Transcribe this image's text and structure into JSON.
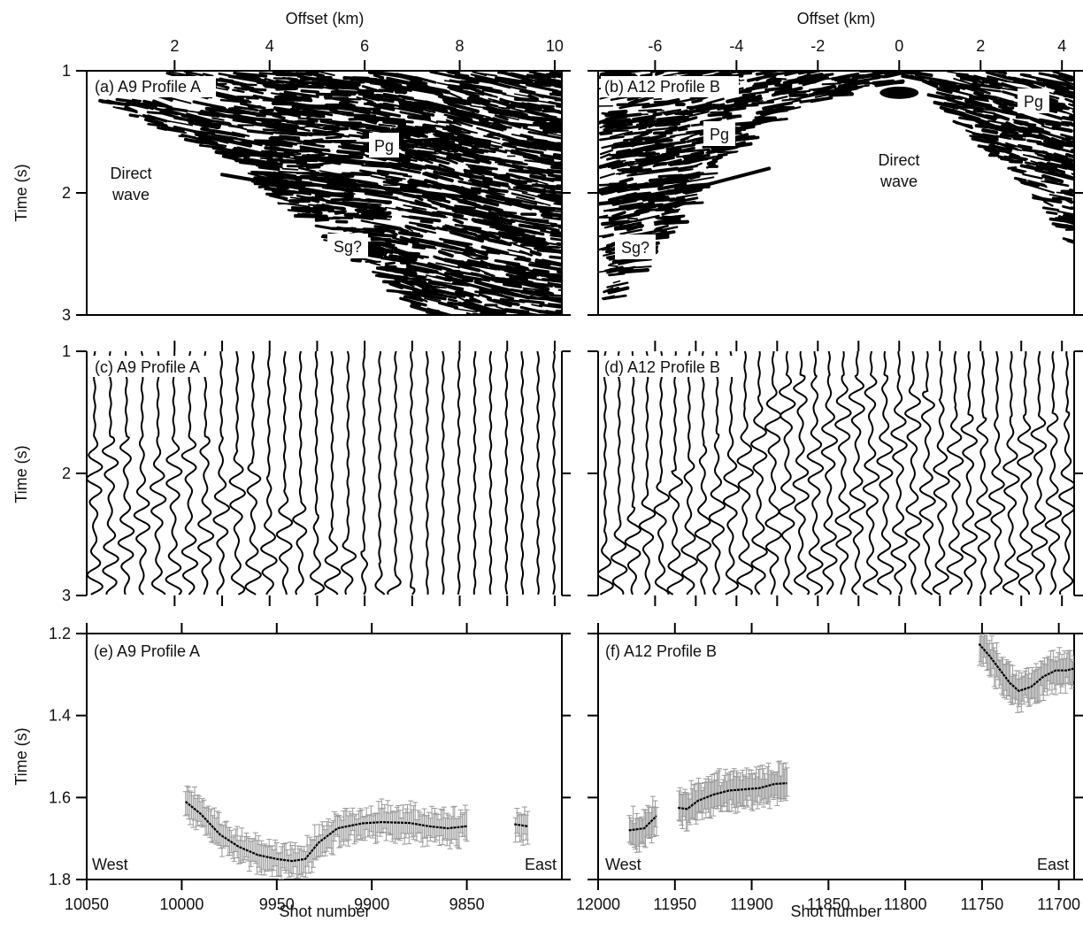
{
  "chart_data": [
    {
      "id": "a",
      "type": "image",
      "panel_label": "(a) A9 Profile A",
      "xlabel": "Offset (km)",
      "x_ticks": [
        "2",
        "4",
        "6",
        "8",
        "10"
      ],
      "xlim": [
        0.15,
        10.15
      ],
      "ylabel": "Time (s)",
      "y_ticks": [
        "1",
        "2",
        "3"
      ],
      "ylim": [
        3,
        1
      ],
      "annotations": [
        "Direct wave",
        "Pg",
        "Sg?"
      ],
      "direct_wave_label": [
        "Direct",
        "wave"
      ]
    },
    {
      "id": "b",
      "type": "image",
      "panel_label": "(b) A12 Profile B",
      "xlabel": "Offset (km)",
      "x_ticks": [
        "-6",
        "-4",
        "-2",
        "0",
        "2",
        "4"
      ],
      "xlim": [
        -7.4,
        4.3
      ],
      "ylim": [
        3,
        1
      ],
      "annotations": [
        "Direct wave",
        "Pg",
        "Sg?",
        "Pg"
      ],
      "direct_wave_label": [
        "Direct",
        "wave"
      ]
    },
    {
      "id": "c",
      "type": "wiggle",
      "panel_label": "(c) A9 Profile A",
      "ylabel": "Time (s)",
      "y_ticks": [
        "1",
        "2",
        "3"
      ],
      "ylim": [
        3,
        1
      ],
      "direct_wave_onset": [
        [
          3.0,
          1.7
        ],
        [
          4.5,
          2.2
        ],
        [
          7.2,
          3.0
        ]
      ]
    },
    {
      "id": "d",
      "type": "wiggle",
      "panel_label": "(d) A12 Profile B",
      "ylim": [
        3,
        1
      ],
      "direct_wave_onset": [
        [
          -7.3,
          2.5
        ],
        [
          -4.2,
          1.6
        ],
        [
          -2.9,
          1.2
        ],
        [
          0,
          1.2
        ],
        [
          1.9,
          1.55
        ],
        [
          4.3,
          1.5
        ]
      ]
    },
    {
      "id": "e",
      "type": "line",
      "panel_label": "(e) A9 Profile A",
      "xlabel": "Shot number",
      "x_ticks": [
        10050,
        10000,
        9950,
        9900,
        9850
      ],
      "xlim": [
        10050,
        9800
      ],
      "x_reversed": true,
      "ylabel": "Time (s)",
      "y_ticks": [
        "1.2",
        "1.4",
        "1.6",
        "1.8"
      ],
      "ylim": [
        1.8,
        1.2
      ],
      "corner_labels": [
        "West",
        "East"
      ],
      "series": [
        {
          "x": [
            9998,
            9990,
            9980,
            9970,
            9960,
            9950,
            9942,
            9935,
            9928,
            9918,
            9905,
            9895,
            9880,
            9870,
            9860,
            9850
          ],
          "y": [
            1.61,
            1.64,
            1.69,
            1.72,
            1.74,
            1.75,
            1.755,
            1.75,
            1.71,
            1.675,
            1.663,
            1.66,
            1.662,
            1.67,
            1.675,
            1.67
          ]
        },
        {
          "x": [
            9825,
            9818
          ],
          "y": [
            1.665,
            1.67
          ]
        }
      ],
      "error_band": 0.035
    },
    {
      "id": "f",
      "type": "line",
      "panel_label": "(f) A12 Profile B",
      "xlabel": "Shot number",
      "x_ticks": [
        12000,
        11950,
        11900,
        11850,
        11800,
        11750,
        11700
      ],
      "xlim": [
        12000,
        11690
      ],
      "x_reversed": true,
      "ylim": [
        1.8,
        1.2
      ],
      "corner_labels": [
        "West",
        "East"
      ],
      "series": [
        {
          "x": [
            11980,
            11970,
            11962
          ],
          "y": [
            1.68,
            1.675,
            1.645
          ]
        },
        {
          "x": [
            11948,
            11942,
            11935,
            11925,
            11915,
            11905,
            11895,
            11885,
            11877
          ],
          "y": [
            1.625,
            1.628,
            1.608,
            1.593,
            1.583,
            1.58,
            1.577,
            1.567,
            1.565
          ]
        },
        {
          "x": [
            11752,
            11745,
            11738,
            11732,
            11726,
            11718,
            11710,
            11702,
            11695,
            11690
          ],
          "y": [
            1.225,
            1.255,
            1.29,
            1.32,
            1.34,
            1.33,
            1.305,
            1.29,
            1.29,
            1.285
          ]
        }
      ],
      "error_band": 0.04
    }
  ]
}
